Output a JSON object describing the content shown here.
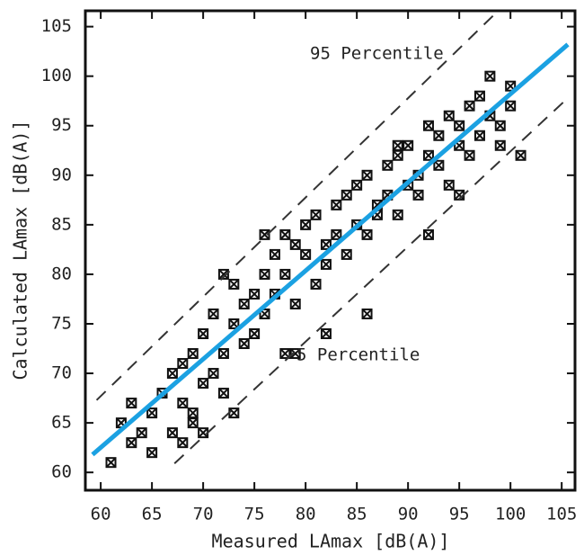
{
  "chart_data": {
    "type": "scatter",
    "x_label": "Measured LAmax [dB(A)]",
    "y_label": "Calculated LAmax [dB(A)]",
    "xlim": [
      58.5,
      106.3
    ],
    "ylim": [
      58.2,
      106.6
    ],
    "xticks": [
      60,
      65,
      70,
      75,
      80,
      85,
      90,
      95,
      100,
      105
    ],
    "yticks": [
      60,
      65,
      70,
      75,
      80,
      85,
      90,
      95,
      100,
      105
    ],
    "color": "#111111",
    "x": [
      61,
      62,
      63,
      63,
      64,
      65,
      65,
      66,
      67,
      67,
      68,
      68,
      69,
      69,
      70,
      70,
      71,
      71,
      72,
      72,
      73,
      73,
      74,
      74,
      75,
      75,
      76,
      76,
      77,
      77,
      78,
      78,
      79,
      79,
      80,
      80,
      81,
      81,
      82,
      82,
      83,
      83,
      84,
      84,
      85,
      85,
      86,
      86,
      87,
      87,
      88,
      88,
      89,
      89,
      90,
      90,
      91,
      91,
      92,
      92,
      93,
      93,
      94,
      94,
      95,
      95,
      96,
      96,
      97,
      97,
      98,
      98,
      99,
      99,
      100,
      100,
      101,
      68,
      69,
      70,
      73,
      76,
      79,
      82,
      86,
      89,
      92,
      95,
      78,
      72
    ],
    "y": [
      61,
      65,
      63,
      67,
      64,
      66,
      62,
      68,
      64,
      70,
      63,
      67,
      65,
      72,
      69,
      74,
      70,
      76,
      72,
      68,
      75,
      79,
      73,
      77,
      78,
      74,
      80,
      76,
      82,
      78,
      80,
      84,
      77,
      83,
      82,
      85,
      79,
      86,
      83,
      81,
      87,
      84,
      82,
      88,
      85,
      89,
      84,
      90,
      87,
      86,
      91,
      88,
      92,
      86,
      89,
      93,
      90,
      88,
      92,
      95,
      91,
      94,
      89,
      96,
      93,
      95,
      97,
      92,
      94,
      98,
      96,
      100,
      93,
      95,
      97,
      99,
      92,
      71,
      66,
      64,
      66,
      84,
      72,
      74,
      76,
      93,
      84,
      88,
      72,
      80
    ],
    "lines": [
      {
        "x": [
          59.6,
          98.8
        ],
        "y": [
          67.3,
          106.6
        ],
        "color": "#333333",
        "style": "dashed"
      },
      {
        "x": [
          67.2,
          105.4
        ],
        "y": [
          60.9,
          97.6
        ],
        "color": "#333333",
        "style": "dashed"
      },
      {
        "x": [
          59.2,
          105.6
        ],
        "y": [
          61.8,
          103.2
        ],
        "color": "#1ba1e2",
        "style": "solid"
      }
    ],
    "annotations": [
      "95 Percentile",
      "5 Percentile"
    ]
  }
}
